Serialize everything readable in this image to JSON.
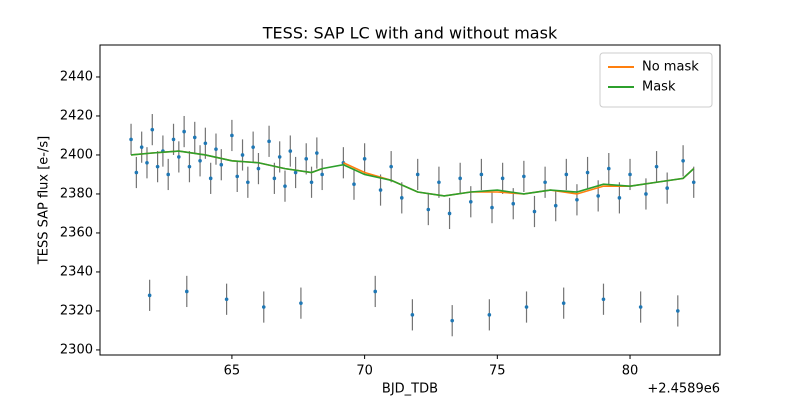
{
  "chart_data": {
    "type": "line",
    "title": "TESS: SAP LC with and without mask",
    "xlabel": "BJD_TDB",
    "ylabel": "TESS SAP flux [e-/s]",
    "x_offset_label": "+2.4589e6",
    "xlim": [
      60.03,
      83.39
    ],
    "ylim": [
      2297.4,
      2456.4
    ],
    "xticks": [
      65,
      70,
      75,
      80
    ],
    "yticks": [
      2300,
      2320,
      2340,
      2360,
      2380,
      2400,
      2420,
      2440
    ],
    "legend": "upper right",
    "scatter": {
      "color": "#1f77b4",
      "ecolor": "#000000",
      "yerr": 8,
      "x": [
        61.2,
        61.4,
        61.6,
        61.8,
        61.9,
        62.0,
        62.2,
        62.4,
        62.6,
        62.8,
        63.0,
        63.2,
        63.3,
        63.4,
        63.6,
        63.8,
        64.0,
        64.2,
        64.4,
        64.6,
        64.8,
        65.0,
        65.2,
        65.4,
        65.6,
        65.8,
        66.0,
        66.2,
        66.4,
        66.6,
        66.8,
        67.0,
        67.2,
        67.4,
        67.6,
        67.8,
        68.0,
        68.2,
        68.4,
        69.2,
        69.6,
        70.0,
        70.4,
        70.6,
        71.0,
        71.4,
        71.8,
        72.0,
        72.4,
        72.8,
        73.2,
        73.3,
        73.6,
        74.0,
        74.4,
        74.7,
        74.8,
        75.2,
        75.6,
        76.0,
        76.1,
        76.4,
        76.8,
        77.2,
        77.5,
        77.6,
        78.0,
        78.4,
        78.8,
        79.0,
        79.2,
        79.6,
        80.0,
        80.4,
        80.6,
        81.0,
        81.4,
        81.8,
        82.0,
        82.4
      ],
      "values": [
        2408,
        2391,
        2404,
        2396,
        2328,
        2413,
        2394,
        2402,
        2390,
        2408,
        2399,
        2412,
        2330,
        2394,
        2409,
        2397,
        2406,
        2388,
        2403,
        2395,
        2326,
        2410,
        2389,
        2400,
        2386,
        2404,
        2393,
        2322,
        2407,
        2388,
        2399,
        2384,
        2402,
        2391,
        2324,
        2398,
        2386,
        2401,
        2390,
        2396,
        2385,
        2398,
        2330,
        2382,
        2394,
        2378,
        2318,
        2390,
        2372,
        2386,
        2370,
        2315,
        2388,
        2376,
        2390,
        2318,
        2373,
        2388,
        2375,
        2389,
        2322,
        2371,
        2386,
        2374,
        2324,
        2390,
        2377,
        2391,
        2379,
        2326,
        2393,
        2378,
        2390,
        2322,
        2380,
        2394,
        2383,
        2320,
        2397,
        2386
      ]
    },
    "series": [
      {
        "name": "No mask",
        "color": "#ff7f0e",
        "x": [
          61.2,
          62,
          63,
          64,
          65,
          66,
          67,
          68,
          68.4,
          68.8,
          69.2,
          70,
          71,
          72,
          73,
          74,
          75,
          76,
          77,
          78,
          79,
          80,
          81,
          82,
          82.4
        ],
        "values": [
          2400,
          2401,
          2402,
          2400,
          2397,
          2396,
          2393,
          2391,
          2393,
          null,
          2396,
          2391,
          2387,
          2381,
          2379,
          2381,
          2381,
          2380,
          2382,
          2380,
          2384,
          2384,
          2386,
          2388,
          2393
        ]
      },
      {
        "name": "Mask",
        "color": "#2ca02c",
        "x": [
          61.2,
          62,
          63,
          64,
          65,
          66,
          67,
          68,
          68.4,
          69.2,
          70,
          71,
          72,
          73,
          74,
          75,
          76,
          77,
          78,
          79,
          80,
          81,
          82,
          82.4
        ],
        "values": [
          2400,
          2401,
          2402,
          2400,
          2397,
          2396,
          2393,
          2391,
          2393,
          2395,
          2390,
          2387,
          2381,
          2379,
          2381,
          2382,
          2380,
          2382,
          2381,
          2385,
          2384,
          2386,
          2388,
          2393
        ]
      }
    ]
  }
}
